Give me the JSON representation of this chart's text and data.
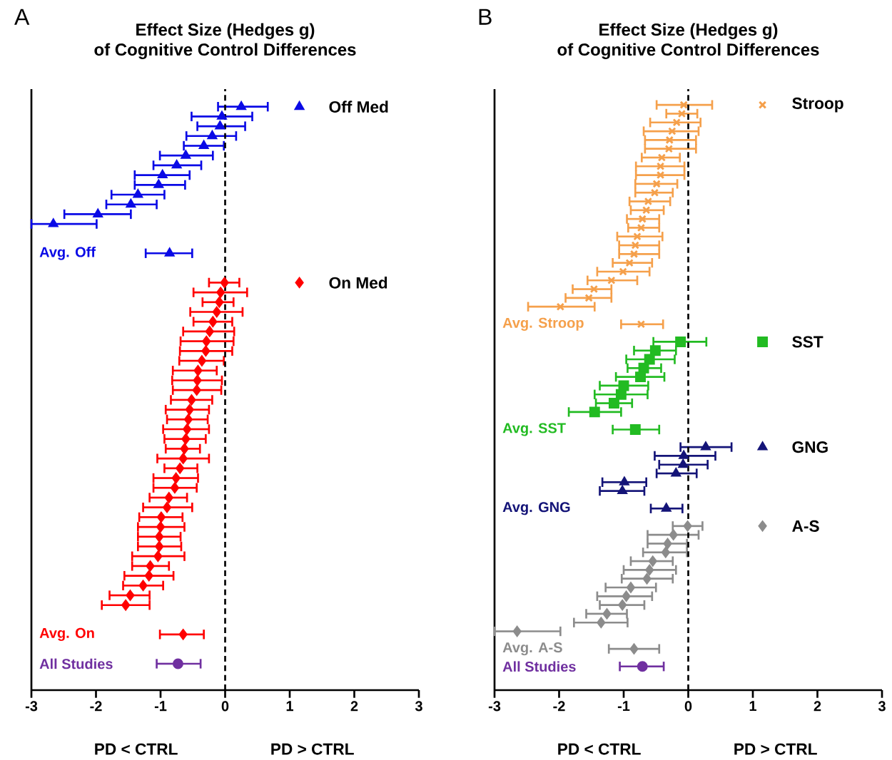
{
  "chart_data": [
    {
      "type": "scatter",
      "orientation": "horizontal",
      "title": "Effect Size (Hedges g)",
      "subtitle": "of Cognitive Control Differences",
      "annotations": [
        "A",
        "PD < CTRL",
        "PD >  CTRL"
      ],
      "xlim": [
        -3,
        3
      ],
      "xticks": [
        -3,
        -2,
        -1,
        0,
        1,
        2,
        3
      ],
      "ref_lines": [
        {
          "axis": "x",
          "value": 0,
          "line_style": "dashed"
        }
      ],
      "legend": "right",
      "categories": [
        null,
        null,
        null,
        null,
        null,
        null,
        null,
        null,
        null,
        null,
        null,
        null,
        null,
        null,
        null,
        "Avg. Off",
        null,
        null,
        null,
        null,
        null,
        null,
        null,
        null,
        null,
        null,
        null,
        null,
        null,
        null,
        null,
        null,
        null,
        null,
        null,
        null,
        null,
        null,
        null,
        null,
        null,
        null,
        null,
        null,
        null,
        null,
        null,
        null,
        null,
        null,
        null,
        null,
        null,
        null,
        "Avg. On",
        null,
        null,
        "All Studies"
      ],
      "series": [
        {
          "name": "Off Med",
          "color": "#0a0ae6",
          "marker": "triangle",
          "values": [
            0.25,
            -0.05,
            -0.08,
            -0.2,
            -0.33,
            -0.61,
            -0.75,
            -0.97,
            -1.03,
            -1.35,
            -1.46,
            -1.97,
            -2.66,
            null,
            null,
            -0.86,
            null,
            null,
            null,
            null,
            null,
            null,
            null,
            null,
            null,
            null,
            null,
            null,
            null,
            null,
            null,
            null,
            null,
            null,
            null,
            null,
            null,
            null,
            null,
            null,
            null,
            null,
            null,
            null,
            null,
            null,
            null,
            null,
            null,
            null,
            null,
            null,
            null,
            null,
            null,
            null,
            null,
            null
          ],
          "errors": [
            [
              -0.11,
              0.66
            ],
            [
              -0.52,
              0.42
            ],
            [
              -0.43,
              0.31
            ],
            [
              -0.6,
              0.17
            ],
            [
              -0.64,
              -0.02
            ],
            [
              -1.01,
              -0.19
            ],
            [
              -1.11,
              -0.37
            ],
            [
              -1.4,
              -0.55
            ],
            [
              -1.4,
              -0.62
            ],
            [
              -1.76,
              -0.94
            ],
            [
              -1.84,
              -1.06
            ],
            [
              -2.49,
              -1.46
            ],
            [
              -3.0,
              -1.99
            ],
            null,
            null,
            [
              -1.23,
              -0.51
            ],
            null,
            null,
            null,
            null,
            null,
            null,
            null,
            null,
            null,
            null,
            null,
            null,
            null,
            null,
            null,
            null,
            null,
            null,
            null,
            null,
            null,
            null,
            null,
            null,
            null,
            null,
            null,
            null,
            null,
            null,
            null,
            null,
            null,
            null,
            null,
            null,
            null,
            null,
            null,
            null,
            null,
            null
          ]
        },
        {
          "name": "On Med",
          "color": "#ff0000",
          "marker": "diamond",
          "values": [
            null,
            null,
            null,
            null,
            null,
            null,
            null,
            null,
            null,
            null,
            null,
            null,
            null,
            null,
            null,
            null,
            null,
            null,
            -0.01,
            -0.07,
            -0.09,
            -0.13,
            -0.19,
            -0.24,
            -0.29,
            -0.3,
            -0.36,
            -0.42,
            -0.43,
            -0.44,
            -0.52,
            -0.55,
            -0.57,
            -0.59,
            -0.61,
            -0.63,
            -0.65,
            -0.7,
            -0.76,
            -0.78,
            -0.87,
            -0.9,
            -0.99,
            -1.0,
            -1.02,
            -1.02,
            -1.04,
            -1.16,
            -1.18,
            -1.27,
            -1.47,
            -1.54,
            null,
            null,
            -0.65,
            null,
            null,
            null
          ],
          "errors": [
            null,
            null,
            null,
            null,
            null,
            null,
            null,
            null,
            null,
            null,
            null,
            null,
            null,
            null,
            null,
            null,
            null,
            null,
            [
              -0.25,
              0.22
            ],
            [
              -0.49,
              0.34
            ],
            [
              -0.35,
              0.13
            ],
            [
              -0.54,
              0.27
            ],
            [
              -0.49,
              0.11
            ],
            [
              -0.65,
              0.14
            ],
            [
              -0.69,
              0.13
            ],
            [
              -0.7,
              0.11
            ],
            [
              -0.71,
              -0.02
            ],
            [
              -0.81,
              -0.13
            ],
            [
              -0.82,
              -0.05
            ],
            [
              -0.81,
              -0.06
            ],
            [
              -0.84,
              -0.2
            ],
            [
              -0.92,
              -0.25
            ],
            [
              -0.9,
              -0.27
            ],
            [
              -0.96,
              -0.25
            ],
            [
              -0.94,
              -0.3
            ],
            [
              -0.92,
              -0.39
            ],
            [
              -1.05,
              -0.25
            ],
            [
              -0.94,
              -0.43
            ],
            [
              -1.11,
              -0.42
            ],
            [
              -1.11,
              -0.44
            ],
            [
              -1.17,
              -0.59
            ],
            [
              -1.27,
              -0.51
            ],
            [
              -1.33,
              -0.66
            ],
            [
              -1.35,
              -0.63
            ],
            [
              -1.35,
              -0.69
            ],
            [
              -1.35,
              -0.68
            ],
            [
              -1.44,
              -0.63
            ],
            [
              -1.44,
              -0.87
            ],
            [
              -1.56,
              -0.8
            ],
            [
              -1.58,
              -0.96
            ],
            [
              -1.79,
              -1.17
            ],
            [
              -1.91,
              -1.17
            ],
            null,
            null,
            [
              -1.01,
              -0.33
            ],
            null,
            null,
            null
          ]
        },
        {
          "color": "#7030a0",
          "marker": "circle",
          "values": [
            null,
            null,
            null,
            null,
            null,
            null,
            null,
            null,
            null,
            null,
            null,
            null,
            null,
            null,
            null,
            null,
            null,
            null,
            null,
            null,
            null,
            null,
            null,
            null,
            null,
            null,
            null,
            null,
            null,
            null,
            null,
            null,
            null,
            null,
            null,
            null,
            null,
            null,
            null,
            null,
            null,
            null,
            null,
            null,
            null,
            null,
            null,
            null,
            null,
            null,
            null,
            null,
            null,
            null,
            null,
            null,
            null,
            -0.73
          ],
          "errors": [
            null,
            null,
            null,
            null,
            null,
            null,
            null,
            null,
            null,
            null,
            null,
            null,
            null,
            null,
            null,
            null,
            null,
            null,
            null,
            null,
            null,
            null,
            null,
            null,
            null,
            null,
            null,
            null,
            null,
            null,
            null,
            null,
            null,
            null,
            null,
            null,
            null,
            null,
            null,
            null,
            null,
            null,
            null,
            null,
            null,
            null,
            null,
            null,
            null,
            null,
            null,
            null,
            null,
            null,
            null,
            null,
            null,
            [
              -1.06,
              -0.38
            ]
          ]
        }
      ]
    },
    {
      "type": "scatter",
      "orientation": "horizontal",
      "title": "Effect Size (Hedges g)",
      "subtitle": "of Cognitive Control Differences",
      "annotations": [
        "B",
        "PD < CTRL",
        "PD >  CTRL"
      ],
      "xlim": [
        -3,
        3
      ],
      "xticks": [
        -3,
        -2,
        -1,
        0,
        1,
        2,
        3
      ],
      "ref_lines": [
        {
          "axis": "x",
          "value": 0,
          "line_style": "dashed"
        }
      ],
      "legend": "right",
      "categories": [
        null,
        null,
        null,
        null,
        null,
        null,
        null,
        null,
        null,
        null,
        null,
        null,
        null,
        null,
        null,
        null,
        null,
        null,
        null,
        null,
        null,
        null,
        null,
        null,
        null,
        "Avg. Stroop",
        null,
        null,
        null,
        null,
        null,
        null,
        null,
        null,
        null,
        null,
        null,
        "Avg. SST",
        null,
        null,
        null,
        null,
        null,
        null,
        null,
        null,
        "Avg. GNG",
        null,
        null,
        null,
        null,
        null,
        null,
        null,
        null,
        null,
        null,
        null,
        null,
        null,
        null,
        null,
        "Avg. A-S",
        null,
        "All Studies"
      ],
      "series": [
        {
          "name": "Stroop",
          "color": "#f5a04b",
          "marker": "cross",
          "values": [
            -0.07,
            -0.1,
            -0.18,
            -0.25,
            -0.29,
            -0.3,
            -0.41,
            -0.43,
            -0.43,
            -0.49,
            -0.52,
            -0.62,
            -0.65,
            -0.71,
            -0.73,
            -0.79,
            -0.82,
            -0.84,
            -0.91,
            -1.01,
            -1.19,
            -1.46,
            -1.54,
            -1.98,
            null,
            -0.73,
            null,
            null,
            null,
            null,
            null,
            null,
            null,
            null,
            null,
            null,
            null,
            null,
            null,
            null,
            null,
            null,
            null,
            null,
            null,
            null,
            null,
            null,
            null,
            null,
            null,
            null,
            null,
            null,
            null,
            null,
            null,
            null,
            null,
            null,
            null,
            null,
            null,
            null,
            null
          ],
          "errors": [
            [
              -0.49,
              0.37
            ],
            [
              -0.34,
              0.14
            ],
            [
              -0.59,
              0.19
            ],
            [
              -0.69,
              0.16
            ],
            [
              -0.67,
              0.12
            ],
            [
              -0.67,
              0.12
            ],
            [
              -0.72,
              -0.13
            ],
            [
              -0.81,
              -0.06
            ],
            [
              -0.81,
              -0.06
            ],
            [
              -0.82,
              -0.17
            ],
            [
              -0.82,
              -0.24
            ],
            [
              -0.91,
              -0.28
            ],
            [
              -0.89,
              -0.38
            ],
            [
              -0.95,
              -0.45
            ],
            [
              -0.93,
              -0.45
            ],
            [
              -1.1,
              -0.4
            ],
            [
              -1.07,
              -0.45
            ],
            [
              -1.07,
              -0.45
            ],
            [
              -1.17,
              -0.56
            ],
            [
              -1.41,
              -0.6
            ],
            [
              -1.56,
              -0.79
            ],
            [
              -1.79,
              -1.19
            ],
            [
              -1.9,
              -1.19
            ],
            [
              -2.48,
              -1.45
            ],
            null,
            [
              -1.04,
              -0.39
            ],
            null,
            null,
            null,
            null,
            null,
            null,
            null,
            null,
            null,
            null,
            null,
            null,
            null,
            null,
            null,
            null,
            null,
            null,
            null,
            null,
            null,
            null,
            null,
            null,
            null,
            null,
            null,
            null,
            null,
            null,
            null,
            null,
            null,
            null,
            null,
            null,
            null,
            null,
            null
          ]
        },
        {
          "name": "SST",
          "color": "#22bb22",
          "marker": "square",
          "values": [
            null,
            null,
            null,
            null,
            null,
            null,
            null,
            null,
            null,
            null,
            null,
            null,
            null,
            null,
            null,
            null,
            null,
            null,
            null,
            null,
            null,
            null,
            null,
            null,
            null,
            null,
            null,
            -0.12,
            -0.51,
            -0.6,
            -0.69,
            -0.74,
            -1.0,
            -1.04,
            -1.15,
            -1.45,
            null,
            -0.82,
            null,
            null,
            null,
            null,
            null,
            null,
            null,
            null,
            null,
            null,
            null,
            null,
            null,
            null,
            null,
            null,
            null,
            null,
            null,
            null,
            null,
            null,
            null,
            null,
            null,
            null,
            null
          ],
          "errors": [
            null,
            null,
            null,
            null,
            null,
            null,
            null,
            null,
            null,
            null,
            null,
            null,
            null,
            null,
            null,
            null,
            null,
            null,
            null,
            null,
            null,
            null,
            null,
            null,
            null,
            null,
            null,
            [
              -0.54,
              0.28
            ],
            [
              -0.84,
              -0.19
            ],
            [
              -0.96,
              -0.21
            ],
            [
              -0.94,
              -0.42
            ],
            [
              -1.12,
              -0.37
            ],
            [
              -1.37,
              -0.62
            ],
            [
              -1.45,
              -0.63
            ],
            [
              -1.43,
              -0.87
            ],
            [
              -1.85,
              -1.04
            ],
            null,
            [
              -1.17,
              -0.45
            ],
            null,
            null,
            null,
            null,
            null,
            null,
            null,
            null,
            null,
            null,
            null,
            null,
            null,
            null,
            null,
            null,
            null,
            null,
            null,
            null,
            null,
            null,
            null,
            null,
            null,
            null,
            null
          ]
        },
        {
          "name": "GNG",
          "color": "#141478",
          "marker": "triangle",
          "values": [
            null,
            null,
            null,
            null,
            null,
            null,
            null,
            null,
            null,
            null,
            null,
            null,
            null,
            null,
            null,
            null,
            null,
            null,
            null,
            null,
            null,
            null,
            null,
            null,
            null,
            null,
            null,
            null,
            null,
            null,
            null,
            null,
            null,
            null,
            null,
            null,
            null,
            null,
            null,
            0.27,
            -0.07,
            -0.08,
            -0.19,
            -0.99,
            -1.02,
            null,
            -0.34,
            null,
            null,
            null,
            null,
            null,
            null,
            null,
            null,
            null,
            null,
            null,
            null,
            null,
            null,
            null,
            null,
            null,
            null
          ],
          "errors": [
            null,
            null,
            null,
            null,
            null,
            null,
            null,
            null,
            null,
            null,
            null,
            null,
            null,
            null,
            null,
            null,
            null,
            null,
            null,
            null,
            null,
            null,
            null,
            null,
            null,
            null,
            null,
            null,
            null,
            null,
            null,
            null,
            null,
            null,
            null,
            null,
            null,
            null,
            null,
            [
              -0.12,
              0.67
            ],
            [
              -0.52,
              0.42
            ],
            [
              -0.45,
              0.3
            ],
            [
              -0.49,
              0.13
            ],
            [
              -1.33,
              -0.65
            ],
            [
              -1.37,
              -0.68
            ],
            null,
            [
              -0.58,
              -0.09
            ],
            null,
            null,
            null,
            null,
            null,
            null,
            null,
            null,
            null,
            null,
            null,
            null,
            null,
            null,
            null,
            null,
            null,
            null
          ]
        },
        {
          "name": "A-S",
          "color": "#8c8c8c",
          "marker": "diamond",
          "values": [
            null,
            null,
            null,
            null,
            null,
            null,
            null,
            null,
            null,
            null,
            null,
            null,
            null,
            null,
            null,
            null,
            null,
            null,
            null,
            null,
            null,
            null,
            null,
            null,
            null,
            null,
            null,
            null,
            null,
            null,
            null,
            null,
            null,
            null,
            null,
            null,
            null,
            null,
            null,
            null,
            null,
            null,
            null,
            null,
            null,
            null,
            null,
            null,
            -0.01,
            -0.23,
            -0.32,
            -0.35,
            -0.55,
            -0.6,
            -0.64,
            -0.89,
            -0.96,
            -1.02,
            -1.26,
            -1.35,
            -2.65,
            null,
            -0.84,
            null,
            null
          ],
          "errors": [
            null,
            null,
            null,
            null,
            null,
            null,
            null,
            null,
            null,
            null,
            null,
            null,
            null,
            null,
            null,
            null,
            null,
            null,
            null,
            null,
            null,
            null,
            null,
            null,
            null,
            null,
            null,
            null,
            null,
            null,
            null,
            null,
            null,
            null,
            null,
            null,
            null,
            null,
            null,
            null,
            null,
            null,
            null,
            null,
            null,
            null,
            null,
            null,
            [
              -0.24,
              0.22
            ],
            [
              -0.63,
              0.16
            ],
            [
              -0.63,
              -0.02
            ],
            [
              -0.7,
              -0.02
            ],
            [
              -0.89,
              -0.24
            ],
            [
              -1.0,
              -0.19
            ],
            [
              -1.03,
              -0.24
            ],
            [
              -1.28,
              -0.5
            ],
            [
              -1.41,
              -0.56
            ],
            [
              -1.37,
              -0.68
            ],
            [
              -1.58,
              -0.95
            ],
            [
              -1.77,
              -0.94
            ],
            [
              -3.0,
              -1.98
            ],
            null,
            [
              -1.23,
              -0.45
            ],
            null,
            null
          ]
        },
        {
          "color": "#7030a0",
          "marker": "circle",
          "values": [
            null,
            null,
            null,
            null,
            null,
            null,
            null,
            null,
            null,
            null,
            null,
            null,
            null,
            null,
            null,
            null,
            null,
            null,
            null,
            null,
            null,
            null,
            null,
            null,
            null,
            null,
            null,
            null,
            null,
            null,
            null,
            null,
            null,
            null,
            null,
            null,
            null,
            null,
            null,
            null,
            null,
            null,
            null,
            null,
            null,
            null,
            null,
            null,
            null,
            null,
            null,
            null,
            null,
            null,
            null,
            null,
            null,
            null,
            null,
            null,
            null,
            null,
            null,
            null,
            -0.71
          ],
          "errors": [
            null,
            null,
            null,
            null,
            null,
            null,
            null,
            null,
            null,
            null,
            null,
            null,
            null,
            null,
            null,
            null,
            null,
            null,
            null,
            null,
            null,
            null,
            null,
            null,
            null,
            null,
            null,
            null,
            null,
            null,
            null,
            null,
            null,
            null,
            null,
            null,
            null,
            null,
            null,
            null,
            null,
            null,
            null,
            null,
            null,
            null,
            null,
            null,
            null,
            null,
            null,
            null,
            null,
            null,
            null,
            null,
            null,
            null,
            null,
            null,
            null,
            null,
            null,
            null,
            [
              -1.06,
              -0.38
            ]
          ]
        }
      ]
    }
  ]
}
